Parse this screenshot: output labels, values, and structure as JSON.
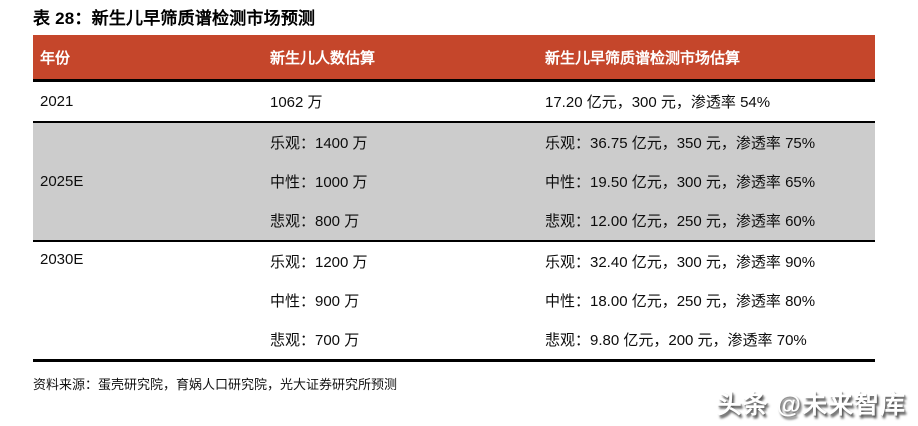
{
  "title": "表 28：新生儿早筛质谱检测市场预测",
  "table": {
    "headers": [
      "年份",
      "新生儿人数估算",
      "新生儿早筛质谱检测市场估算"
    ],
    "groups": [
      {
        "year": "2021",
        "shaded": false,
        "rows": [
          {
            "population": "1062 万",
            "market": "17.20 亿元，300 元，渗透率 54%"
          }
        ]
      },
      {
        "year": "2025E",
        "shaded": true,
        "rows": [
          {
            "population": "乐观：1400 万",
            "market": "乐观：36.75 亿元，350 元，渗透率 75%"
          },
          {
            "population": "中性：1000 万",
            "market": "中性：19.50 亿元，300 元，渗透率 65%"
          },
          {
            "population": "悲观：800 万",
            "market": "悲观：12.00 亿元，250 元，渗透率 60%"
          }
        ]
      },
      {
        "year": "2030E",
        "shaded": false,
        "rows": [
          {
            "population": "乐观：1200 万",
            "market": "乐观：32.40 亿元，300 元，渗透率 90%"
          },
          {
            "population": "中性：900 万",
            "market": "中性：18.00 亿元，250 元，渗透率 80%"
          },
          {
            "population": "悲观：700 万",
            "market": "悲观：9.80 亿元，200 元，渗透率 70%"
          }
        ]
      }
    ]
  },
  "footer": {
    "source": "资料来源：蛋壳研究院，育娲人口研究院，光大证券研究所预测"
  },
  "watermark": "头条 @未来智库",
  "colors": {
    "header_bg": "#C5462B",
    "header_text": "#FFFFFF",
    "shaded_row_bg": "#CCCCCC",
    "border": "#000000",
    "page_bg": "#FFFFFF"
  }
}
